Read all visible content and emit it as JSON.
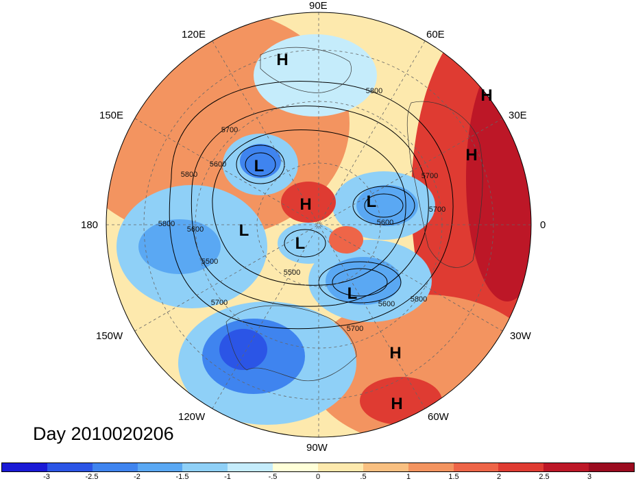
{
  "title": "Day 2010020206",
  "longitude_labels": [
    {
      "text": "90E"
    },
    {
      "text": "60E"
    },
    {
      "text": "30E"
    },
    {
      "text": "0"
    },
    {
      "text": "30W"
    },
    {
      "text": "60W"
    },
    {
      "text": "90W"
    },
    {
      "text": "120W"
    },
    {
      "text": "150W"
    },
    {
      "text": "180"
    },
    {
      "text": "150E"
    },
    {
      "text": "120E"
    }
  ],
  "pressure_centers": [
    {
      "type": "H"
    },
    {
      "type": "H"
    },
    {
      "type": "H"
    },
    {
      "type": "L"
    },
    {
      "type": "H"
    },
    {
      "type": "L"
    },
    {
      "type": "L"
    },
    {
      "type": "L"
    },
    {
      "type": "L"
    },
    {
      "type": "H"
    },
    {
      "type": "H"
    }
  ],
  "contour_labels": [
    "5800",
    "5700",
    "5600",
    "5800",
    "5800",
    "5600",
    "5500",
    "5700",
    "5700",
    "5700",
    "5600",
    "5800",
    "5700",
    "5600",
    "5500"
  ],
  "colorbar": {
    "colors": [
      "#1a1ad6",
      "#2b55e6",
      "#3f84ef",
      "#5aa8f3",
      "#8fd0f7",
      "#c5ecfb",
      "#ffffd8",
      "#fde9ad",
      "#f9c081",
      "#f39460",
      "#ee6548",
      "#df3b32",
      "#bd1727",
      "#9b0b1f"
    ],
    "ticks": [
      "-3",
      "-2.5",
      "-2",
      "-1.5",
      "-1",
      "-.5",
      "0",
      ".5",
      "1",
      "1.5",
      "2",
      "2.5",
      "3"
    ]
  }
}
